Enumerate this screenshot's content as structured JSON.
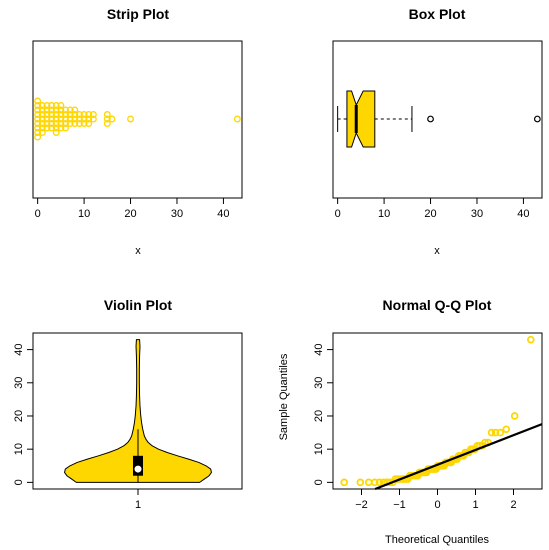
{
  "colors": {
    "fill": "#FFD700",
    "point": "#FFD700",
    "line": "#000000",
    "background": "#ffffff"
  },
  "chart_data": [
    {
      "type": "scatter",
      "title": "Strip Plot",
      "xlabel": "x",
      "ylabel": "",
      "xlim": [
        -1,
        44
      ],
      "xticks": [
        0,
        10,
        20,
        30,
        40
      ],
      "values": [
        0,
        0,
        0,
        0,
        0,
        0,
        0,
        0,
        0,
        1,
        1,
        1,
        1,
        1,
        1,
        1,
        2,
        2,
        2,
        2,
        2,
        2,
        3,
        3,
        3,
        3,
        3,
        3,
        4,
        4,
        4,
        4,
        4,
        4,
        4,
        5,
        5,
        5,
        5,
        5,
        5,
        6,
        6,
        6,
        6,
        6,
        7,
        7,
        7,
        7,
        8,
        8,
        8,
        8,
        9,
        9,
        9,
        10,
        10,
        10,
        11,
        11,
        11,
        12,
        12,
        15,
        15,
        15,
        16,
        20,
        43
      ]
    },
    {
      "type": "box",
      "title": "Box Plot",
      "xlabel": "x",
      "ylabel": "",
      "xlim": [
        -1,
        44
      ],
      "xticks": [
        0,
        10,
        20,
        30,
        40
      ],
      "notch": true,
      "whisker_low": 0,
      "q1": 2,
      "median": 4,
      "q3": 8,
      "notch_low": 3,
      "notch_high": 5.5,
      "whisker_high": 16,
      "outliers": [
        20,
        43
      ]
    },
    {
      "type": "violin",
      "title": "Violin Plot",
      "xlabel": "",
      "ylabel": "",
      "ylim": [
        -2,
        45
      ],
      "yticks": [
        0,
        10,
        20,
        30,
        40
      ],
      "xticks": [
        1
      ],
      "density": [
        [
          0,
          0.78
        ],
        [
          1,
          0.84
        ],
        [
          2,
          0.9
        ],
        [
          3,
          0.93
        ],
        [
          4,
          0.92
        ],
        [
          5,
          0.86
        ],
        [
          6,
          0.77
        ],
        [
          7,
          0.64
        ],
        [
          8,
          0.5
        ],
        [
          9,
          0.37
        ],
        [
          10,
          0.26
        ],
        [
          11,
          0.18
        ],
        [
          12,
          0.13
        ],
        [
          13,
          0.1
        ],
        [
          14,
          0.08
        ],
        [
          15,
          0.07
        ],
        [
          16,
          0.06
        ],
        [
          18,
          0.045
        ],
        [
          20,
          0.035
        ],
        [
          23,
          0.025
        ],
        [
          26,
          0.02
        ],
        [
          30,
          0.017
        ],
        [
          34,
          0.017
        ],
        [
          38,
          0.02
        ],
        [
          41,
          0.025
        ],
        [
          43,
          0.02
        ]
      ],
      "q1": 2,
      "median": 4,
      "q3": 8,
      "whisker_low": 0,
      "whisker_high": 16
    },
    {
      "type": "qq",
      "title": "Normal Q-Q Plot",
      "xlabel": "Theoretical Quantiles",
      "ylabel": "Sample Quantiles",
      "xlim": [
        -2.75,
        2.75
      ],
      "ylim": [
        -2,
        45
      ],
      "xticks": [
        -2,
        -1,
        0,
        1,
        2
      ],
      "yticks": [
        0,
        10,
        20,
        30,
        40
      ],
      "reference_line": {
        "slope": 4.45,
        "intercept": 5.3
      }
    }
  ]
}
